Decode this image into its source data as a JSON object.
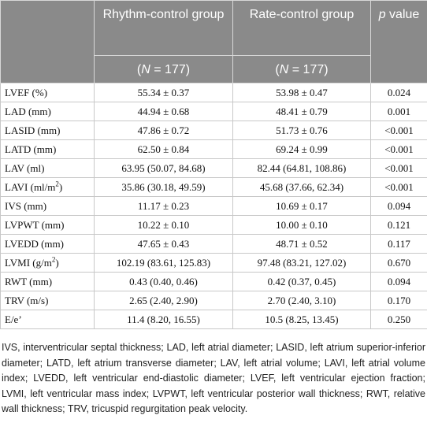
{
  "table": {
    "header": {
      "rhythm_group_label": "Rhythm-control group",
      "rhythm_n": "(N = 177)",
      "rate_group_label": "Rate-control group",
      "rate_n": "(N = 177)",
      "p_label": "p value"
    },
    "rows": [
      {
        "label": "LVEF (%)",
        "rhythm": "55.34 ± 0.37",
        "rate": "53.98 ± 0.47",
        "p": "0.024"
      },
      {
        "label": "LAD (mm)",
        "rhythm": "44.94 ± 0.68",
        "rate": "48.41 ± 0.79",
        "p": "0.001"
      },
      {
        "label": "LASID (mm)",
        "rhythm": "47.86 ± 0.72",
        "rate": "51.73 ± 0.76",
        "p": "<0.001"
      },
      {
        "label": "LATD (mm)",
        "rhythm": "62.50 ± 0.84",
        "rate": "69.24 ± 0.99",
        "p": "<0.001"
      },
      {
        "label": "LAV (ml)",
        "rhythm": "63.95 (50.07, 84.68)",
        "rate": "82.44 (64.81, 108.86)",
        "p": "<0.001"
      },
      {
        "label": "LAVI (ml/m",
        "label_sup": "2",
        "label_tail": ")",
        "rhythm": "35.86 (30.18, 49.59)",
        "rate": "45.68 (37.66, 62.34)",
        "p": "<0.001"
      },
      {
        "label": "IVS (mm)",
        "rhythm": "11.17 ± 0.23",
        "rate": "10.69 ± 0.17",
        "p": "0.094"
      },
      {
        "label": "LVPWT (mm)",
        "rhythm": "10.22 ± 0.10",
        "rate": "10.00 ± 0.10",
        "p": "0.121"
      },
      {
        "label": "LVEDD (mm)",
        "rhythm": "47.65 ± 0.43",
        "rate": "48.71 ± 0.52",
        "p": "0.117"
      },
      {
        "label": "LVMI (g/m",
        "label_sup": "2",
        "label_tail": ")",
        "rhythm": "102.19 (83.61, 125.83)",
        "rate": "97.48 (83.21, 127.02)",
        "p": "0.670"
      },
      {
        "label": "RWT (mm)",
        "rhythm": "0.43 (0.40, 0.46)",
        "rate": "0.42 (0.37, 0.45)",
        "p": "0.094"
      },
      {
        "label": "TRV (m/s)",
        "rhythm": "2.65 (2.40, 2.90)",
        "rate": "2.70 (2.40, 3.10)",
        "p": "0.170"
      },
      {
        "label": "E/e’",
        "rhythm": "11.4 (8.20, 16.55)",
        "rate": "10.5 (8.25, 13.45)",
        "p": "0.250"
      }
    ]
  },
  "footnote": "IVS, interventricular septal thickness; LAD, left atrial diameter; LASID, left atrium superior-inferior diameter; LATD, left atrium transverse diameter; LAV, left atrial volume; LAVI, left atrial volume index; LVEDD, left ventricular end-diastolic diameter; LVEF, left ventricular ejection fraction; LVMI, left ventricular mass index; LVPWT, left ventricular posterior wall thickness; RWT, relative wall thickness; TRV, tricuspid regurgitation peak velocity."
}
